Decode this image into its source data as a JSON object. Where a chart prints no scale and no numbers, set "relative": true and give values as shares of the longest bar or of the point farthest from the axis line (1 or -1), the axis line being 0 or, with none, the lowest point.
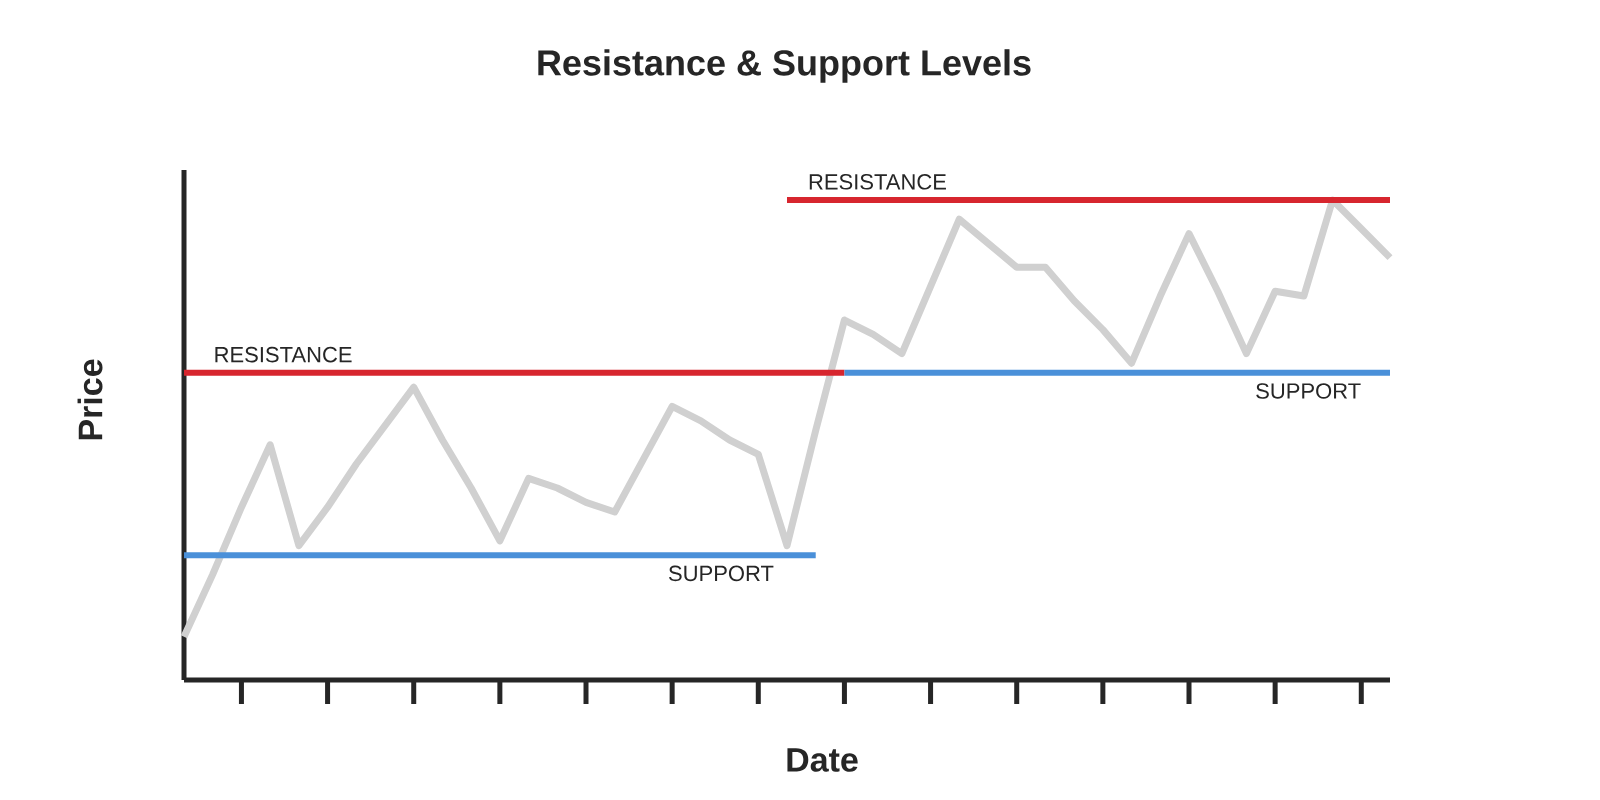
{
  "chart_data": {
    "type": "line",
    "title": "Resistance & Support Levels",
    "xlabel": "Date",
    "ylabel": "Price",
    "relative": true,
    "categories": [
      null,
      null,
      null,
      null,
      null,
      null,
      null,
      null,
      null,
      null,
      null,
      null,
      null,
      null,
      null,
      null,
      null,
      null,
      null,
      null,
      null,
      null,
      null,
      null,
      null,
      null,
      null,
      null,
      null,
      null,
      null,
      null,
      null,
      null,
      null,
      null,
      null,
      null,
      null,
      null,
      null,
      null,
      null
    ],
    "series": [
      {
        "color": "#d0d0d0",
        "values": [
          0.09,
          0.22,
          0.36,
          0.49,
          0.28,
          0.36,
          0.45,
          0.53,
          0.61,
          0.5,
          0.4,
          0.29,
          0.42,
          0.4,
          0.37,
          0.35,
          0.46,
          0.57,
          0.54,
          0.5,
          0.47,
          0.28,
          0.52,
          0.75,
          0.72,
          0.68,
          0.82,
          0.96,
          0.91,
          0.86,
          0.86,
          0.79,
          0.73,
          0.66,
          0.8,
          0.93,
          0.81,
          0.68,
          0.81,
          0.8,
          1.0,
          0.94,
          0.88
        ]
      },
      {
        "color": "#d7262e",
        "values": [
          0.64,
          0.64,
          0.64,
          0.64,
          0.64,
          0.64,
          0.64,
          0.64,
          0.64,
          0.64,
          0.64,
          0.64,
          0.64,
          0.64,
          0.64,
          0.64,
          0.64,
          0.64,
          0.64,
          0.64,
          0.64,
          0.64,
          0.64,
          0.64,
          null,
          null,
          null,
          null,
          null,
          null,
          null,
          null,
          null,
          null,
          null,
          null,
          null,
          null,
          null,
          null,
          null,
          null,
          null
        ]
      },
      {
        "color": "#4a90d9",
        "values": [
          0.26,
          0.26,
          0.26,
          0.26,
          0.26,
          0.26,
          0.26,
          0.26,
          0.26,
          0.26,
          0.26,
          0.26,
          0.26,
          0.26,
          0.26,
          0.26,
          0.26,
          0.26,
          0.26,
          0.26,
          0.26,
          0.26,
          0.26,
          null,
          null,
          null,
          null,
          null,
          null,
          null,
          null,
          null,
          null,
          null,
          null,
          null,
          null,
          null,
          null,
          null,
          null,
          null,
          null
        ]
      },
      {
        "color": "#d7262e",
        "values": [
          null,
          null,
          null,
          null,
          null,
          null,
          null,
          null,
          null,
          null,
          null,
          null,
          null,
          null,
          null,
          null,
          null,
          null,
          null,
          null,
          null,
          1.0,
          1.0,
          1.0,
          1.0,
          1.0,
          1.0,
          1.0,
          1.0,
          1.0,
          1.0,
          1.0,
          1.0,
          1.0,
          1.0,
          1.0,
          1.0,
          1.0,
          1.0,
          1.0,
          1.0,
          1.0,
          1.0
        ]
      },
      {
        "color": "#4a90d9",
        "values": [
          null,
          null,
          null,
          null,
          null,
          null,
          null,
          null,
          null,
          null,
          null,
          null,
          null,
          null,
          null,
          null,
          null,
          null,
          null,
          null,
          null,
          null,
          null,
          0.64,
          0.64,
          0.64,
          0.64,
          0.64,
          0.64,
          0.64,
          0.64,
          0.64,
          0.64,
          0.64,
          0.64,
          0.64,
          0.64,
          0.64,
          0.64,
          0.64,
          0.64,
          0.64,
          0.64
        ]
      }
    ],
    "annotations": [
      "RESISTANCE",
      "SUPPORT",
      "RESISTANCE",
      "SUPPORT"
    ]
  }
}
